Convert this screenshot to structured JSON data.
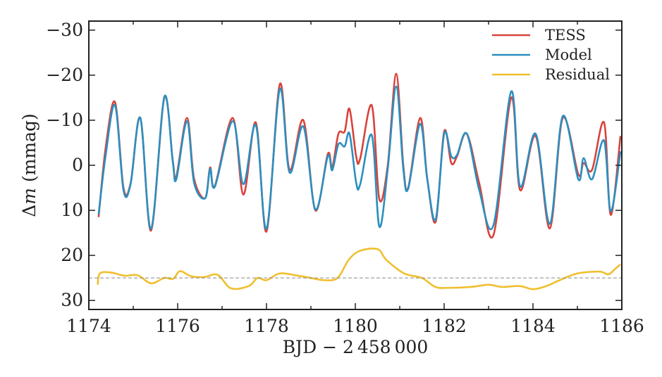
{
  "chart_data": {
    "type": "line",
    "xlabel": "BJD − 2 458 000",
    "ylabel_prefix": "Δ",
    "ylabel_var": "m",
    "ylabel_suffix": " (mmag)",
    "xlim": [
      1174,
      1186
    ],
    "ylim": [
      32,
      -32
    ],
    "y_inverted": true,
    "xticks": [
      1174,
      1176,
      1178,
      1180,
      1182,
      1184,
      1186
    ],
    "xtick_labels": [
      "1174",
      "1176",
      "1178",
      "1180",
      "1182",
      "1184",
      "1186"
    ],
    "yticks": [
      -30,
      -20,
      -10,
      0,
      10,
      20,
      30
    ],
    "ytick_labels": [
      "−30",
      "−20",
      "−10",
      "0",
      "10",
      "20",
      "30"
    ],
    "reference_line": {
      "y": 25,
      "style": "dashed",
      "color": "#888888"
    },
    "legend_position": "top-right",
    "series": [
      {
        "name": "TESS",
        "color": "#d8433b",
        "points": [
          [
            1174.22,
            11.5
          ],
          [
            1174.38,
            -4
          ],
          [
            1174.59,
            -14
          ],
          [
            1174.78,
            5
          ],
          [
            1174.94,
            4
          ],
          [
            1175.16,
            -10.5
          ],
          [
            1175.4,
            14.5
          ],
          [
            1175.7,
            -15
          ],
          [
            1175.89,
            -1
          ],
          [
            1175.97,
            2.5
          ],
          [
            1176.21,
            -10.5
          ],
          [
            1176.37,
            3
          ],
          [
            1176.62,
            7.3
          ],
          [
            1176.73,
            0.5
          ],
          [
            1176.84,
            4.5
          ],
          [
            1177.24,
            -10.5
          ],
          [
            1177.48,
            6.5
          ],
          [
            1177.76,
            -9.5
          ],
          [
            1178.0,
            14.7
          ],
          [
            1178.3,
            -18
          ],
          [
            1178.52,
            1
          ],
          [
            1178.83,
            -10
          ],
          [
            1179.1,
            10
          ],
          [
            1179.38,
            -2.5
          ],
          [
            1179.48,
            0.5
          ],
          [
            1179.62,
            -7
          ],
          [
            1179.76,
            -7.5
          ],
          [
            1179.87,
            -12.5
          ],
          [
            1180.02,
            -1.9
          ],
          [
            1180.11,
            -1.5
          ],
          [
            1180.37,
            -13.3
          ],
          [
            1180.54,
            7.5
          ],
          [
            1180.73,
            0
          ],
          [
            1180.92,
            -20.3
          ],
          [
            1181.08,
            0
          ],
          [
            1181.19,
            5
          ],
          [
            1181.46,
            -10.5
          ],
          [
            1181.62,
            3
          ],
          [
            1181.81,
            12.5
          ],
          [
            1182.0,
            -7.5
          ],
          [
            1182.16,
            -0.5
          ],
          [
            1182.29,
            -2
          ],
          [
            1182.51,
            -7
          ],
          [
            1182.79,
            4
          ],
          [
            1183.11,
            15.5
          ],
          [
            1183.51,
            -15
          ],
          [
            1183.71,
            5.5
          ],
          [
            1184.06,
            -6.5
          ],
          [
            1184.38,
            14
          ],
          [
            1184.67,
            -10.5
          ],
          [
            1185.02,
            2
          ],
          [
            1185.14,
            -0.5
          ],
          [
            1185.33,
            1
          ],
          [
            1185.6,
            -9.5
          ],
          [
            1185.75,
            11
          ],
          [
            1185.97,
            -6.5
          ]
        ]
      },
      {
        "name": "Model",
        "color": "#2b8fc0",
        "points": [
          [
            1174.22,
            10.9
          ],
          [
            1174.38,
            -2.3
          ],
          [
            1174.59,
            -13.3
          ],
          [
            1174.78,
            5.5
          ],
          [
            1174.94,
            4.2
          ],
          [
            1175.16,
            -10.5
          ],
          [
            1175.4,
            14.1
          ],
          [
            1175.7,
            -15.2
          ],
          [
            1175.89,
            -0.8
          ],
          [
            1175.97,
            3.1
          ],
          [
            1176.21,
            -9.8
          ],
          [
            1176.37,
            3.9
          ],
          [
            1176.62,
            7.3
          ],
          [
            1176.73,
            0.8
          ],
          [
            1176.84,
            4.7
          ],
          [
            1177.24,
            -9.8
          ],
          [
            1177.48,
            4.2
          ],
          [
            1177.76,
            -8.9
          ],
          [
            1178.0,
            14.1
          ],
          [
            1178.3,
            -16.9
          ],
          [
            1178.52,
            1.6
          ],
          [
            1178.83,
            -8.6
          ],
          [
            1179.1,
            9.8
          ],
          [
            1179.38,
            -2.0
          ],
          [
            1179.48,
            1.1
          ],
          [
            1179.62,
            -4.7
          ],
          [
            1179.76,
            -4.2
          ],
          [
            1179.87,
            -7.0
          ],
          [
            1180.02,
            3.9
          ],
          [
            1180.11,
            4.2
          ],
          [
            1180.37,
            -6.7
          ],
          [
            1180.54,
            13.6
          ],
          [
            1180.73,
            0.8
          ],
          [
            1180.92,
            -17.5
          ],
          [
            1181.08,
            0.8
          ],
          [
            1181.19,
            5.2
          ],
          [
            1181.46,
            -9.2
          ],
          [
            1181.62,
            3.1
          ],
          [
            1181.81,
            12.0
          ],
          [
            1182.0,
            -7.0
          ],
          [
            1182.16,
            -2.0
          ],
          [
            1182.29,
            -2.3
          ],
          [
            1182.51,
            -7.0
          ],
          [
            1182.79,
            5.5
          ],
          [
            1183.11,
            13.3
          ],
          [
            1183.51,
            -16.4
          ],
          [
            1183.71,
            4.7
          ],
          [
            1184.06,
            -7.0
          ],
          [
            1184.38,
            13.0
          ],
          [
            1184.67,
            -10.9
          ],
          [
            1185.02,
            3.1
          ],
          [
            1185.14,
            -1.6
          ],
          [
            1185.33,
            3.1
          ],
          [
            1185.6,
            -5.5
          ],
          [
            1185.75,
            10.2
          ],
          [
            1185.97,
            -3.1
          ]
        ]
      },
      {
        "name": "Residual",
        "color": "#f0bf2e",
        "points": [
          [
            1174.2,
            26.5
          ],
          [
            1174.25,
            24
          ],
          [
            1174.5,
            23.8
          ],
          [
            1174.8,
            24.5
          ],
          [
            1175.1,
            24.4
          ],
          [
            1175.4,
            26.2
          ],
          [
            1175.7,
            25
          ],
          [
            1175.9,
            25.2
          ],
          [
            1176.05,
            23.5
          ],
          [
            1176.3,
            24.6
          ],
          [
            1176.6,
            24.8
          ],
          [
            1176.9,
            24.3
          ],
          [
            1177.2,
            27.3
          ],
          [
            1177.6,
            26.8
          ],
          [
            1177.8,
            25
          ],
          [
            1178.0,
            25.5
          ],
          [
            1178.3,
            24
          ],
          [
            1178.7,
            24.5
          ],
          [
            1179.0,
            25
          ],
          [
            1179.3,
            25.5
          ],
          [
            1179.6,
            25
          ],
          [
            1179.85,
            21
          ],
          [
            1180.1,
            19
          ],
          [
            1180.5,
            18.6
          ],
          [
            1180.7,
            21
          ],
          [
            1181.1,
            24
          ],
          [
            1181.5,
            25
          ],
          [
            1181.8,
            27
          ],
          [
            1182.1,
            27.2
          ],
          [
            1182.6,
            27
          ],
          [
            1183.0,
            26.5
          ],
          [
            1183.3,
            27
          ],
          [
            1183.7,
            26.8
          ],
          [
            1184.0,
            27.5
          ],
          [
            1184.3,
            26.8
          ],
          [
            1184.6,
            25.5
          ],
          [
            1185.0,
            24
          ],
          [
            1185.5,
            23.6
          ],
          [
            1185.7,
            24.2
          ],
          [
            1185.85,
            23
          ],
          [
            1185.97,
            22
          ]
        ]
      }
    ]
  }
}
